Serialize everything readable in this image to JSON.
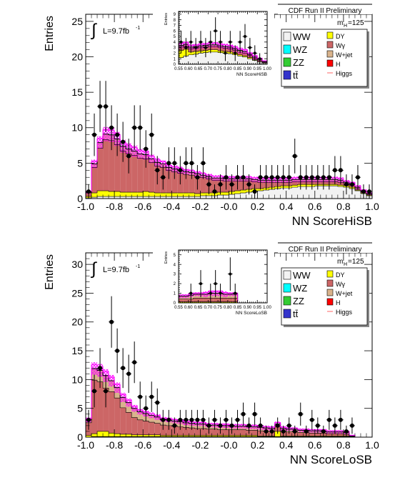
{
  "legend_items": [
    {
      "label": "WW",
      "color": "#f2f2f2"
    },
    {
      "label": "WZ",
      "color": "#00ffff"
    },
    {
      "label": "ZZ",
      "color": "#33cc33"
    },
    {
      "label": "tt̄",
      "color": "#3333cc"
    },
    {
      "label": "DY",
      "color": "#ffff00"
    },
    {
      "label": "Wγ",
      "color": "#cc6666"
    },
    {
      "label": "W+jet",
      "color": "#d9b38c"
    },
    {
      "label": "H",
      "color": "#ff0000"
    },
    {
      "label": "Higgs",
      "color": "#ff6666"
    }
  ],
  "colors": {
    "wgamma": "#cc6666",
    "wjet": "#d9b38c",
    "dy": "#ffff00",
    "ww": "#f2f2f2",
    "higgs": "#ff00ff",
    "data": "#000000"
  },
  "chart_data": [
    {
      "type": "bar",
      "panel": "top-main",
      "title": "CDF Run II Preliminary",
      "luminosity_label": "L=9.7fb",
      "luminosity_exp": "-1",
      "mass_label": "m",
      "mass_sub": "H",
      "mass_value": "=125",
      "xlabel": "NN ScoreHiSB",
      "ylabel": "Entries",
      "xlim": [
        -1.0,
        1.0
      ],
      "ylim": [
        0,
        26
      ],
      "x_ticks": [
        "-1.0",
        "-0.8",
        "-0.6",
        "-0.4",
        "-0.2",
        "-0.0",
        "0.2",
        "0.4",
        "0.6",
        "0.8",
        "1.0"
      ],
      "y_ticks": [
        "0",
        "5",
        "10",
        "15",
        "20",
        "25"
      ],
      "bin_width": 0.04,
      "x": [
        -0.98,
        -0.94,
        -0.9,
        -0.86,
        -0.82,
        -0.78,
        -0.74,
        -0.7,
        -0.66,
        -0.62,
        -0.58,
        -0.54,
        -0.5,
        -0.46,
        -0.42,
        -0.38,
        -0.34,
        -0.3,
        -0.26,
        -0.22,
        -0.18,
        -0.14,
        -0.1,
        -0.06,
        -0.02,
        0.02,
        0.06,
        0.1,
        0.14,
        0.18,
        0.22,
        0.26,
        0.3,
        0.34,
        0.38,
        0.42,
        0.46,
        0.5,
        0.54,
        0.58,
        0.62,
        0.66,
        0.7,
        0.74,
        0.78,
        0.82,
        0.86,
        0.9,
        0.94,
        0.98
      ],
      "stack_ww": [
        0.1,
        0.2,
        0.3,
        0.3,
        0.3,
        0.3,
        0.3,
        0.3,
        0.3,
        0.3,
        0.3,
        0.3,
        0.3,
        0.3,
        0.3,
        0.3,
        0.3,
        0.3,
        0.3,
        0.3,
        0.4,
        0.4,
        0.4,
        0.5,
        0.5,
        0.6,
        0.7,
        0.8,
        0.9,
        1.0,
        1.1,
        1.2,
        1.3,
        1.4,
        1.5,
        1.5,
        1.6,
        1.7,
        1.7,
        1.7,
        1.8,
        1.8,
        1.8,
        1.8,
        1.7,
        1.6,
        1.4,
        1.1,
        0.7,
        0.4
      ],
      "stack_dy": [
        0.2,
        0.6,
        0.8,
        0.8,
        0.7,
        0.7,
        0.6,
        0.6,
        0.6,
        0.6,
        0.7,
        0.6,
        0.5,
        0.5,
        0.5,
        0.5,
        0.5,
        0.5,
        0.5,
        0.4,
        0.4,
        0.4,
        0.4,
        0.4,
        0.4,
        0.4,
        0.4,
        0.4,
        0.4,
        0.4,
        0.3,
        0.3,
        0.3,
        0.3,
        0.3,
        0.3,
        0.3,
        0.3,
        0.3,
        0.3,
        0.2,
        0.2,
        0.2,
        0.2,
        0.2,
        0.2,
        0.2,
        0.1,
        0.1,
        0.1
      ],
      "stack_wgamma": [
        0.5,
        3.6,
        6.0,
        7.2,
        7.2,
        6.6,
        5.8,
        5.4,
        5.2,
        4.8,
        4.6,
        4.2,
        3.8,
        3.6,
        3.2,
        3.0,
        2.8,
        2.6,
        2.5,
        2.4,
        2.2,
        2.0,
        1.8,
        1.7,
        1.6,
        1.5,
        1.4,
        1.3,
        1.2,
        1.0,
        0.9,
        0.8,
        0.7,
        0.6,
        0.5,
        0.5,
        0.5,
        0.4,
        0.4,
        0.4,
        0.4,
        0.4,
        0.4,
        0.4,
        0.4,
        0.3,
        0.3,
        0.2,
        0.2,
        0.1
      ],
      "stack_wjet": [
        0.1,
        0.5,
        0.8,
        0.8,
        0.8,
        0.8,
        0.7,
        0.7,
        0.6,
        0.6,
        0.6,
        0.5,
        0.5,
        0.5,
        0.4,
        0.4,
        0.4,
        0.4,
        0.4,
        0.4,
        0.3,
        0.3,
        0.3,
        0.3,
        0.3,
        0.3,
        0.3,
        0.3,
        0.3,
        0.3,
        0.3,
        0.3,
        0.3,
        0.3,
        0.3,
        0.3,
        0.3,
        0.3,
        0.3,
        0.3,
        0.3,
        0.3,
        0.3,
        0.3,
        0.3,
        0.2,
        0.2,
        0.2,
        0.1,
        0.1
      ],
      "uncertainty": [
        0.2,
        0.6,
        0.9,
        1.0,
        1.0,
        1.0,
        0.9,
        0.8,
        0.8,
        0.7,
        0.7,
        0.6,
        0.6,
        0.5,
        0.5,
        0.5,
        0.5,
        0.4,
        0.4,
        0.4,
        0.4,
        0.4,
        0.4,
        0.4,
        0.4,
        0.4,
        0.4,
        0.4,
        0.4,
        0.4,
        0.4,
        0.4,
        0.4,
        0.4,
        0.4,
        0.4,
        0.4,
        0.4,
        0.4,
        0.4,
        0.4,
        0.4,
        0.4,
        0.4,
        0.4,
        0.3,
        0.3,
        0.3,
        0.2,
        0.2
      ],
      "data_y": [
        1,
        9,
        13,
        13,
        10,
        9,
        8,
        6,
        10,
        10,
        7,
        9,
        4,
        3,
        5,
        5,
        4,
        5,
        5,
        3,
        5,
        2,
        1,
        2,
        3,
        2,
        3,
        3,
        2,
        1,
        3,
        3,
        3,
        3,
        3,
        3,
        6,
        3,
        3,
        3,
        3,
        3,
        3,
        4,
        4,
        2,
        2,
        3,
        1,
        1
      ],
      "inset": {
        "xlabel": "NN ScoreHiSB",
        "ylabel": "Entries",
        "xlim": [
          0.55,
          1.0
        ],
        "ylim": [
          0,
          9.5
        ],
        "x_ticks": [
          "0.55",
          "0.60",
          "0.65",
          "0.70",
          "0.75",
          "0.80",
          "0.85",
          "0.90",
          "0.95",
          "1.00"
        ],
        "y_ticks": [
          "0",
          "1",
          "2",
          "3",
          "4",
          "5",
          "6",
          "7",
          "8",
          "9"
        ],
        "bin_width": 0.025,
        "x": [
          0.5625,
          0.5875,
          0.6125,
          0.6375,
          0.6625,
          0.6875,
          0.7125,
          0.7375,
          0.7625,
          0.7875,
          0.8125,
          0.8375,
          0.8625,
          0.8875,
          0.9125,
          0.9375,
          0.9625,
          0.9875
        ],
        "stack_ww": [
          1.2,
          1.5,
          1.7,
          1.8,
          2.0,
          2.1,
          2.2,
          2.2,
          2.1,
          2.0,
          1.9,
          1.7,
          1.5,
          1.3,
          1.0,
          0.7,
          0.4,
          0.2
        ],
        "stack_dy": [
          1.3,
          1.2,
          0.5,
          0.5,
          0.4,
          0.4,
          0.4,
          0.4,
          0.3,
          0.3,
          0.3,
          0.3,
          0.2,
          0.2,
          0.2,
          0.1,
          0.1,
          0.1
        ],
        "stack_wgamma": [
          0.6,
          0.6,
          0.6,
          0.6,
          0.6,
          0.6,
          0.6,
          0.6,
          0.6,
          0.6,
          0.6,
          0.5,
          0.5,
          0.5,
          0.4,
          0.3,
          0.2,
          0.1
        ],
        "stack_wjet": [
          0.3,
          0.3,
          0.3,
          0.3,
          0.3,
          0.3,
          0.3,
          0.3,
          0.3,
          0.3,
          0.3,
          0.3,
          0.3,
          0.3,
          0.2,
          0.2,
          0.2,
          0.1
        ],
        "uncertainty": [
          0.5,
          0.5,
          0.5,
          0.5,
          0.5,
          0.5,
          0.5,
          0.5,
          0.5,
          0.5,
          0.5,
          0.5,
          0.5,
          0.5,
          0.4,
          0.4,
          0.3,
          0.2
        ],
        "data_y": [
          4,
          3,
          4,
          3,
          4,
          3,
          4,
          6,
          4,
          2,
          4,
          2,
          4,
          5,
          3,
          2,
          1,
          0
        ]
      }
    },
    {
      "type": "bar",
      "panel": "bottom-main",
      "title": "CDF Run II Preliminary",
      "luminosity_label": "L=9.7fb",
      "luminosity_exp": "-1",
      "mass_label": "m",
      "mass_sub": "H",
      "mass_value": "=125",
      "xlabel": "NN ScoreLoSB",
      "ylabel": "Entries",
      "xlim": [
        -1.0,
        1.0
      ],
      "ylim": [
        0,
        32
      ],
      "x_ticks": [
        "-1.0",
        "-0.8",
        "-0.6",
        "-0.4",
        "-0.2",
        "-0.0",
        "0.2",
        "0.4",
        "0.6",
        "0.8",
        "1.0"
      ],
      "y_ticks": [
        "0",
        "5",
        "10",
        "15",
        "20",
        "25",
        "30"
      ],
      "bin_width": 0.04,
      "x": [
        -0.98,
        -0.94,
        -0.9,
        -0.86,
        -0.82,
        -0.78,
        -0.74,
        -0.7,
        -0.66,
        -0.62,
        -0.58,
        -0.54,
        -0.5,
        -0.46,
        -0.42,
        -0.38,
        -0.34,
        -0.3,
        -0.26,
        -0.22,
        -0.18,
        -0.14,
        -0.1,
        -0.06,
        -0.02,
        0.02,
        0.06,
        0.1,
        0.14,
        0.18,
        0.22,
        0.26,
        0.3,
        0.34,
        0.38,
        0.42,
        0.46,
        0.5,
        0.54,
        0.58,
        0.62,
        0.66,
        0.7,
        0.74,
        0.78,
        0.82,
        0.86,
        0.9,
        0.94,
        0.98
      ],
      "stack_ww": [
        0.0,
        0.1,
        0.1,
        0.1,
        0.1,
        0.1,
        0.1,
        0.1,
        0.1,
        0.1,
        0.1,
        0.1,
        0.1,
        0.1,
        0.1,
        0.1,
        0.1,
        0.1,
        0.1,
        0.1,
        0.1,
        0.1,
        0.1,
        0.1,
        0.1,
        0.1,
        0.1,
        0.1,
        0.1,
        0.1,
        0.1,
        0.1,
        0.1,
        0.1,
        0.1,
        0.1,
        0.1,
        0.1,
        0.1,
        0.1,
        0.1,
        0.1,
        0.1,
        0.1,
        0.1,
        0.1,
        0.0,
        0.0,
        0.0,
        0.0
      ],
      "stack_dy": [
        0.3,
        0.5,
        0.9,
        0.9,
        0.6,
        0.5,
        0.4,
        0.4,
        0.3,
        0.3,
        0.3,
        0.3,
        0.3,
        0.2,
        0.2,
        0.2,
        0.2,
        0.2,
        0.2,
        0.2,
        0.2,
        0.2,
        0.2,
        0.2,
        0.2,
        0.2,
        0.2,
        0.2,
        0.2,
        0.2,
        0.1,
        0.1,
        0.1,
        0.9,
        0.1,
        0.1,
        0.1,
        0.1,
        0.1,
        0.1,
        0.1,
        0.1,
        0.1,
        0.1,
        0.1,
        0.1,
        0.0,
        0.0,
        0.0,
        0.0
      ],
      "stack_wgamma": [
        2.2,
        9.3,
        8.6,
        7.5,
        7.2,
        6.2,
        4.6,
        3.8,
        3.0,
        2.6,
        2.4,
        2.2,
        2.0,
        1.8,
        1.7,
        1.6,
        1.5,
        1.4,
        1.3,
        1.2,
        1.2,
        1.1,
        1.1,
        1.0,
        1.0,
        1.0,
        1.0,
        1.0,
        0.9,
        0.9,
        0.9,
        0.8,
        0.8,
        0.8,
        0.8,
        0.7,
        0.7,
        0.6,
        0.6,
        0.5,
        0.5,
        0.5,
        0.4,
        0.4,
        0.4,
        0.3,
        0.1,
        0.0,
        0.0,
        0.0
      ],
      "stack_wjet": [
        0.5,
        2.0,
        2.0,
        2.2,
        1.9,
        1.8,
        1.8,
        1.7,
        1.6,
        1.4,
        1.3,
        1.2,
        1.1,
        1.0,
        1.0,
        0.9,
        0.9,
        0.8,
        0.8,
        0.8,
        0.8,
        0.7,
        0.7,
        0.7,
        0.7,
        0.6,
        0.6,
        0.6,
        0.6,
        0.6,
        0.6,
        0.6,
        0.5,
        0.5,
        0.5,
        0.5,
        0.5,
        0.4,
        0.4,
        0.4,
        0.4,
        0.4,
        0.3,
        0.3,
        0.3,
        0.3,
        0.1,
        0.0,
        0.0,
        0.0
      ],
      "uncertainty": [
        0.4,
        1.1,
        1.1,
        1.1,
        1.0,
        0.9,
        0.8,
        0.7,
        0.6,
        0.5,
        0.5,
        0.5,
        0.5,
        0.4,
        0.4,
        0.4,
        0.4,
        0.4,
        0.4,
        0.4,
        0.4,
        0.4,
        0.4,
        0.4,
        0.4,
        0.4,
        0.4,
        0.4,
        0.4,
        0.4,
        0.4,
        0.4,
        0.4,
        0.4,
        0.4,
        0.3,
        0.3,
        0.3,
        0.3,
        0.3,
        0.3,
        0.3,
        0.3,
        0.3,
        0.3,
        0.3,
        0.2,
        0.0,
        0.0,
        0.0
      ],
      "data_y": [
        3,
        8,
        12,
        8,
        20,
        15,
        12,
        11,
        13,
        7,
        5,
        7,
        6,
        3,
        3,
        2,
        3,
        3,
        3,
        3,
        3,
        2,
        3,
        2,
        3,
        2,
        3,
        4,
        2,
        4,
        2,
        1,
        1,
        2,
        1,
        2,
        1,
        4,
        1,
        3,
        2,
        1,
        3,
        2,
        3,
        1,
        2,
        0,
        0,
        0
      ],
      "inset": {
        "xlabel": "NN ScoreLoSB",
        "ylabel": "Entries",
        "xlim": [
          0.55,
          1.0
        ],
        "ylim": [
          0,
          5.5
        ],
        "x_ticks": [
          "0.55",
          "0.60",
          "0.65",
          "0.70",
          "0.75",
          "0.80",
          "0.85",
          "0.90",
          "0.95",
          "1.00"
        ],
        "y_ticks": [
          "0",
          "1",
          "2",
          "3",
          "4",
          "5"
        ],
        "bin_width": 0.025,
        "x": [
          0.5625,
          0.5875,
          0.6125,
          0.6375,
          0.6625,
          0.6875,
          0.7125,
          0.7375,
          0.7625,
          0.7875,
          0.8125,
          0.8375,
          0.8625,
          0.8875,
          0.9125,
          0.9375,
          0.9625,
          0.9875
        ],
        "stack_ww": [
          0.0,
          0.0,
          0.0,
          0.0,
          0.0,
          0.0,
          0.0,
          0.0,
          0.0,
          0.0,
          0.0,
          0.0,
          0.0,
          0.0,
          0.0,
          0.0,
          0.0,
          0.0
        ],
        "stack_dy": [
          0.1,
          0.1,
          0.1,
          0.1,
          0.1,
          0.1,
          0.1,
          0.1,
          0.1,
          0.1,
          0.1,
          0.1,
          0.0,
          0.0,
          0.0,
          0.0,
          0.0,
          0.0
        ],
        "stack_wgamma": [
          0.3,
          0.3,
          0.3,
          0.4,
          0.4,
          0.4,
          0.4,
          0.4,
          0.4,
          0.4,
          0.4,
          0.4,
          0.0,
          0.0,
          0.0,
          0.0,
          0.0,
          0.0
        ],
        "stack_wjet": [
          0.3,
          0.3,
          0.4,
          0.4,
          0.4,
          0.4,
          0.5,
          0.5,
          0.5,
          0.4,
          0.4,
          0.4,
          0.0,
          0.0,
          0.0,
          0.0,
          0.0,
          0.0
        ],
        "uncertainty": [
          0.2,
          0.2,
          0.2,
          0.2,
          0.2,
          0.3,
          0.3,
          0.3,
          0.3,
          0.3,
          0.2,
          0.2,
          0.0,
          0.0,
          0.0,
          0.0,
          0.0,
          0.0
        ],
        "data_y": [
          0,
          0,
          1,
          0,
          2,
          0,
          1,
          2,
          1,
          0,
          3,
          1,
          0,
          0,
          0,
          0,
          0,
          0
        ]
      }
    }
  ]
}
